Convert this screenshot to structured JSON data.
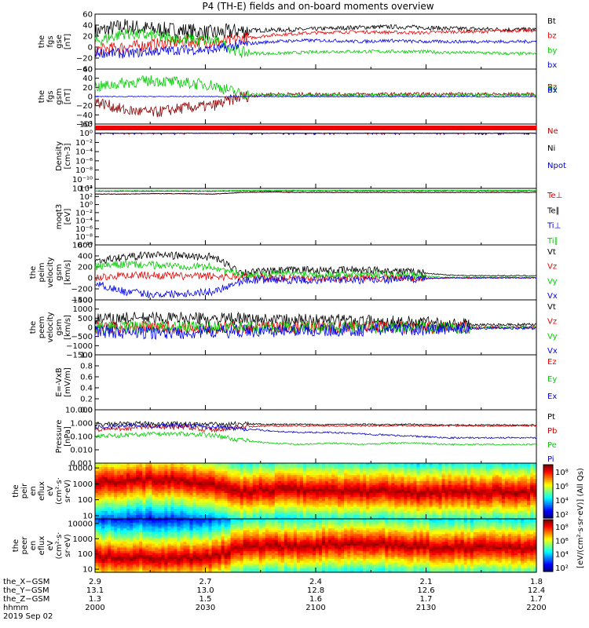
{
  "title": "P4 (TH-E) fields and on-board moments overview",
  "chart_data": {
    "type": "line",
    "x_range": [
      "2000",
      "2200"
    ],
    "panels": [
      {
        "ylabel": [
          "the",
          "fgs",
          "gse",
          "[nT]"
        ],
        "yrange": [
          -40,
          60
        ],
        "scale": "linear",
        "ticks": [
          60,
          40,
          20,
          0,
          -20,
          -40
        ],
        "tick_labels": [
          "60",
          "40",
          "20",
          "0",
          "−20",
          "−40"
        ],
        "series": [
          {
            "name": "Bt",
            "color": "#000000",
            "kind": "bt",
            "values": [
              28,
              38,
              32,
              30,
              25,
              30,
              31,
              32,
              34,
              36,
              37,
              36,
              34,
              33,
              32,
              32
            ]
          },
          {
            "name": "bz",
            "color": "#ee0000",
            "kind": "bz",
            "values": [
              -5,
              0,
              5,
              10,
              8,
              15,
              22,
              25,
              27,
              28,
              27,
              26,
              28,
              28,
              30,
              30
            ]
          },
          {
            "name": "by",
            "color": "#00cc00",
            "kind": "by",
            "values": [
              10,
              25,
              20,
              15,
              12,
              -10,
              -12,
              -10,
              -8,
              -8,
              -8,
              -8,
              -10,
              -10,
              -12,
              -12
            ]
          },
          {
            "name": "bx",
            "color": "#0000ee",
            "kind": "bx",
            "values": [
              -10,
              -12,
              -8,
              -5,
              -5,
              5,
              10,
              12,
              12,
              10,
              12,
              10,
              10,
              10,
              10,
              10
            ]
          }
        ]
      },
      {
        "ylabel": [
          "the",
          "fgs",
          "gsm",
          "[nT]"
        ],
        "yrange": [
          -60,
          60
        ],
        "scale": "linear",
        "ticks": [
          60,
          40,
          20,
          0,
          -20,
          -40,
          -60
        ],
        "tick_labels": [
          "60",
          "40",
          "20",
          "0",
          "−20",
          "−40",
          "−60"
        ],
        "series": [
          {
            "name": "Bz",
            "color": "#8b0000",
            "kind": "gsmz",
            "values": [
              -10,
              -30,
              -35,
              -25,
              -20,
              0,
              5,
              5,
              5,
              5,
              5,
              5,
              5,
              5,
              5,
              5
            ]
          },
          {
            "name": "By",
            "color": "#00cc00",
            "kind": "gsmy",
            "values": [
              20,
              30,
              35,
              30,
              25,
              5,
              3,
              3,
              3,
              3,
              3,
              3,
              3,
              3,
              3,
              3
            ]
          },
          {
            "name": "Bx",
            "color": "#0000ee",
            "kind": "gsmx",
            "values": [
              0,
              0,
              0,
              0,
              0,
              0,
              0,
              0,
              0,
              0,
              0,
              0,
              0,
              0,
              0,
              0
            ]
          }
        ]
      },
      {
        "ylabel": [
          "Density",
          "[cm-3]"
        ],
        "yrange": [
          -12,
          2
        ],
        "scale": "log",
        "ticks": [
          2,
          0,
          -2,
          -4,
          -6,
          -8,
          -10,
          -12
        ],
        "tick_labels": [
          "10²",
          "10⁰",
          "10⁻²",
          "10⁻⁴",
          "10⁻⁶",
          "10⁻⁸",
          "10⁻¹⁰",
          "10⁻¹²"
        ],
        "series": [
          {
            "name": "Ne",
            "color": "#cc0000",
            "kind": "dens",
            "values": [
              0,
              0,
              0,
              0,
              0,
              0,
              0,
              0,
              0,
              0,
              0,
              0,
              0,
              0,
              0,
              0
            ]
          },
          {
            "name": "Ni",
            "color": "#000000",
            "kind": "dens",
            "values": [
              0,
              0,
              0,
              0,
              0,
              0,
              0,
              0,
              0,
              0,
              0,
              0,
              0,
              0,
              0,
              0
            ]
          },
          {
            "name": "Npot",
            "color": "#0000cc",
            "kind": "dens",
            "values": [
              0,
              0,
              0,
              0,
              0,
              0,
              0,
              0,
              0,
              0,
              0,
              0,
              0,
              0,
              0,
              0
            ]
          }
        ]
      },
      {
        "ylabel": [
          "moqt3",
          "[eV]"
        ],
        "yrange": [
          -10,
          4
        ],
        "scale": "log",
        "ticks": [
          4,
          2,
          0,
          -2,
          -4,
          -6,
          -8,
          -10
        ],
        "tick_labels": [
          "10⁴",
          "10²",
          "10⁰",
          "10⁻²",
          "10⁻⁴",
          "10⁻⁶",
          "10⁻⁸",
          "10⁻¹⁰"
        ],
        "series": [
          {
            "name": "Te⊥",
            "color": "#cc0000",
            "kind": "temp",
            "values": [
              2.6,
              2.6,
              2.7,
              2.7,
              2.6,
              3.0,
              3.1,
              3.0,
              3.0,
              3.0,
              3.0,
              3.0,
              3.0,
              3.0,
              3.0,
              3.0
            ]
          },
          {
            "name": "Te∥",
            "color": "#000000",
            "kind": "temp",
            "values": [
              2.6,
              2.6,
              2.7,
              2.7,
              2.6,
              3.0,
              3.1,
              3.0,
              3.0,
              3.0,
              3.0,
              3.0,
              3.0,
              3.0,
              3.0,
              3.0
            ]
          },
          {
            "name": "Ti⊥",
            "color": "#0000cc",
            "kind": "temp",
            "values": [
              3.3,
              3.3,
              3.3,
              3.3,
              3.3,
              3.4,
              3.4,
              3.4,
              3.4,
              3.4,
              3.4,
              3.4,
              3.4,
              3.4,
              3.4,
              3.4
            ]
          },
          {
            "name": "Ti∥",
            "color": "#00cc00",
            "kind": "temp",
            "values": [
              3.4,
              3.4,
              3.4,
              3.4,
              3.4,
              3.5,
              3.5,
              3.5,
              3.5,
              3.5,
              3.5,
              3.5,
              3.5,
              3.5,
              3.5,
              3.5
            ]
          }
        ]
      },
      {
        "ylabel": [
          "the",
          "peim",
          "velocity",
          "gsm",
          "[km/s]"
        ],
        "yrange": [
          -400,
          600
        ],
        "scale": "linear",
        "ticks": [
          600,
          400,
          200,
          0,
          -200,
          -400
        ],
        "tick_labels": [
          "600",
          "400",
          "200",
          "0",
          "−200",
          "−400"
        ],
        "series": [
          {
            "name": "Vt",
            "color": "#000000",
            "kind": "vt",
            "values": [
              300,
              380,
              420,
              400,
              380,
              100,
              120,
              150,
              130,
              150,
              130,
              100,
              50,
              40,
              40,
              40
            ]
          },
          {
            "name": "Vz",
            "color": "#ee0000",
            "kind": "v",
            "values": [
              0,
              50,
              50,
              30,
              30,
              20,
              10,
              0,
              0,
              0,
              0,
              0,
              0,
              0,
              0,
              0
            ]
          },
          {
            "name": "Vy",
            "color": "#00cc00",
            "kind": "v",
            "values": [
              200,
              250,
              230,
              220,
              200,
              50,
              80,
              80,
              60,
              80,
              60,
              40,
              10,
              10,
              10,
              10
            ]
          },
          {
            "name": "Vx",
            "color": "#0000ee",
            "kind": "v",
            "values": [
              -100,
              -250,
              -300,
              -280,
              -250,
              -50,
              -30,
              -50,
              -30,
              -50,
              -30,
              -20,
              0,
              0,
              0,
              0
            ]
          }
        ]
      },
      {
        "ylabel": [
          "the",
          "peem",
          "velocity",
          "gsm",
          "[km/s]"
        ],
        "yrange": [
          -1500,
          1500
        ],
        "scale": "linear",
        "ticks": [
          1500,
          1000,
          500,
          0,
          -500,
          -1000,
          -1500
        ],
        "tick_labels": [
          "1500",
          "1000",
          "500",
          "0",
          "−500",
          "−1000",
          "−1500"
        ],
        "series": [
          {
            "name": "Vt",
            "color": "#000000",
            "kind": "vpeem",
            "values": [
              400,
              500,
              500,
              500,
              450,
              450,
              400,
              400,
              400,
              350,
              300,
              300,
              200,
              150,
              150,
              150
            ]
          },
          {
            "name": "Vz",
            "color": "#ee0000",
            "kind": "vpeemc",
            "values": [
              0,
              0,
              0,
              0,
              0,
              0,
              0,
              0,
              0,
              0,
              0,
              0,
              0,
              0,
              0,
              0
            ]
          },
          {
            "name": "Vy",
            "color": "#00cc00",
            "kind": "vpeemc",
            "values": [
              0,
              0,
              0,
              0,
              0,
              0,
              0,
              0,
              0,
              0,
              0,
              0,
              0,
              0,
              0,
              0
            ]
          },
          {
            "name": "Vx",
            "color": "#0000ee",
            "kind": "vpeemc",
            "values": [
              -200,
              -300,
              -300,
              -300,
              -250,
              -200,
              -200,
              -150,
              -150,
              -150,
              -100,
              -100,
              -50,
              -50,
              -50,
              -50
            ]
          }
        ]
      },
      {
        "ylabel": [
          "E=-VxB",
          "[mV/m]"
        ],
        "yrange": [
          0,
          1
        ],
        "scale": "linear",
        "ticks": [
          1,
          0.8,
          0.6,
          0.4,
          0.2,
          0
        ],
        "tick_labels": [
          "1.0",
          "0.8",
          "0.6",
          "0.4",
          "0.2",
          "0.0"
        ],
        "series": [
          {
            "name": "Ez",
            "color": "#ee0000",
            "kind": "none",
            "values": []
          },
          {
            "name": "Ey",
            "color": "#00cc00",
            "kind": "none",
            "values": []
          },
          {
            "name": "Ex",
            "color": "#0000ee",
            "kind": "none",
            "values": []
          }
        ]
      },
      {
        "ylabel": [
          "Pressure",
          "[nPa]"
        ],
        "yrange": [
          -3,
          1
        ],
        "scale": "log",
        "ticks": [
          1,
          0,
          -1,
          -2,
          -3
        ],
        "tick_labels": [
          "10.000",
          "1.000",
          "0.100",
          "0.010",
          "0.001"
        ],
        "series": [
          {
            "name": "Pt",
            "color": "#000000",
            "kind": "press",
            "values": [
              -0.1,
              -0.05,
              -0.05,
              -0.05,
              -0.1,
              -0.05,
              -0.1,
              -0.1,
              -0.1,
              -0.1,
              -0.1,
              -0.1,
              -0.15,
              -0.15,
              -0.15,
              -0.15
            ]
          },
          {
            "name": "Pb",
            "color": "#cc0000",
            "kind": "press",
            "values": [
              -0.5,
              -0.4,
              -0.3,
              -0.3,
              -0.5,
              -0.3,
              -0.2,
              -0.2,
              -0.2,
              -0.2,
              -0.2,
              -0.2,
              -0.2,
              -0.2,
              -0.2,
              -0.2
            ]
          },
          {
            "name": "Pe",
            "color": "#00cc00",
            "kind": "press",
            "values": [
              -1.0,
              -0.9,
              -0.8,
              -0.8,
              -0.9,
              -1.3,
              -1.5,
              -1.6,
              -1.5,
              -1.6,
              -1.5,
              -1.5,
              -1.6,
              -1.6,
              -1.6,
              -1.6
            ]
          },
          {
            "name": "Pi",
            "color": "#0000cc",
            "kind": "press",
            "values": [
              -0.3,
              -0.2,
              -0.2,
              -0.2,
              -0.3,
              -0.4,
              -0.6,
              -0.7,
              -0.7,
              -0.8,
              -0.9,
              -1.0,
              -1.1,
              -1.1,
              -1.1,
              -1.1
            ]
          }
        ]
      }
    ],
    "spectrograms": [
      {
        "ylabel": [
          "the",
          "peir",
          "en",
          "eflux",
          "eV",
          "(cm²·s·",
          "sr·eV)"
        ],
        "ticks": [
          10000,
          1000,
          100,
          10
        ],
        "tick_labels": [
          "10000",
          "1000",
          "100",
          "10"
        ],
        "peak_log_energy": [
          3.0,
          3.2,
          3.3,
          3.2,
          3.0,
          2.5,
          2.6,
          2.6,
          2.6,
          2.5,
          2.6,
          2.4,
          2.5,
          2.5,
          2.5,
          2.5
        ]
      },
      {
        "ylabel": [
          "the",
          "peer",
          "en",
          "eflux",
          "eV",
          "(cm²·s·",
          "sr·eV)"
        ],
        "ticks": [
          10000,
          1000,
          100,
          10
        ],
        "tick_labels": [
          "10000",
          "1000",
          "100",
          "10"
        ],
        "peak_log_energy": [
          1.8,
          1.8,
          1.7,
          1.7,
          1.8,
          2.5,
          2.5,
          2.5,
          2.6,
          2.6,
          2.6,
          2.5,
          2.4,
          2.4,
          2.4,
          2.4
        ]
      }
    ],
    "colorbar": {
      "label": "[eV/(cm²·s·sr·eV)] (All Qs)",
      "tick_labels": [
        "10⁸",
        "10⁶",
        "10⁴",
        "10²",
        "10⁸",
        "10⁶",
        "10⁴",
        "10²"
      ]
    },
    "ephemeris": {
      "labels": [
        "the_X−GSM",
        "the_Y−GSM",
        "the_Z−GSM",
        "hhmm",
        "2019 Sep 02"
      ],
      "rows": [
        [
          "2.9",
          "2.7",
          "2.4",
          "2.1",
          "1.8"
        ],
        [
          "13.1",
          "13.0",
          "12.8",
          "12.6",
          "12.4"
        ],
        [
          "1.3",
          "1.5",
          "1.6",
          "1.7",
          "1.7"
        ],
        [
          "2000",
          "2030",
          "2100",
          "2130",
          "2200"
        ]
      ]
    }
  }
}
